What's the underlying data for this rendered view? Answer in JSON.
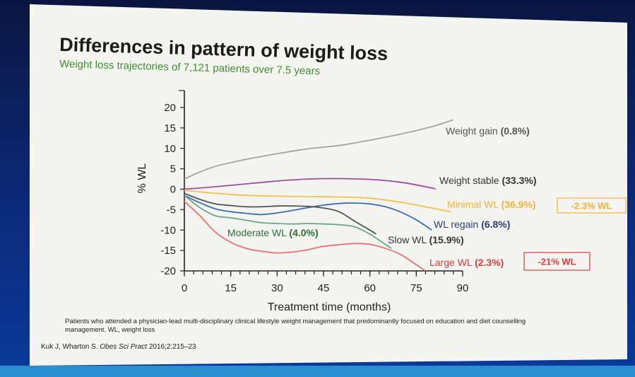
{
  "slide": {
    "title": "Differences in pattern of weight loss",
    "subtitle": "Weight loss trajectories of 7,121 patients over 7.5 years",
    "footnote_line1": "Patients who attended a physician-lead multi-disciplinary clinical lifestyle weight management that predominantly focused on education and diet counselling",
    "footnote_line2": "management. WL, weight loss",
    "citation_authors": "Kuk J, Wharton S. ",
    "citation_journal": "Obes Sci Pract",
    "citation_rest": " 2016;2:215–23"
  },
  "chart_data": {
    "type": "line",
    "title": "",
    "xlabel": "Treatment time (months)",
    "ylabel": "% WL",
    "xlim": [
      0,
      90
    ],
    "ylim": [
      -20,
      20
    ],
    "xticks": [
      0,
      15,
      30,
      45,
      60,
      75,
      90
    ],
    "yticks": [
      20,
      15,
      10,
      5,
      0,
      -5,
      -10,
      -15,
      -20
    ],
    "grid": false,
    "legend": "inline labels at right end of lines",
    "series": [
      {
        "name": "Weight gain",
        "share": "(0.8%)",
        "color": "#a3a3a3",
        "labelColor": "#555555",
        "x": [
          0,
          5,
          10,
          15,
          20,
          30,
          40,
          50,
          60,
          70,
          80,
          87
        ],
        "y": [
          2.5,
          4.2,
          5.6,
          6.5,
          7.3,
          8.7,
          9.9,
          10.7,
          12.0,
          13.5,
          15.3,
          17.0
        ]
      },
      {
        "name": "Weight stable",
        "share": "(33.3%)",
        "color": "#a34ba3",
        "labelColor": "#333333",
        "x": [
          0,
          10,
          20,
          30,
          40,
          50,
          60,
          70,
          80,
          81
        ],
        "y": [
          0,
          0.6,
          1.3,
          2.0,
          2.5,
          2.6,
          2.4,
          1.7,
          0.3,
          0
        ]
      },
      {
        "name": "Minimal WL",
        "share": "(36.9%)",
        "color": "#f2c14e",
        "labelColor": "#f2b13a",
        "x": [
          0,
          10,
          20,
          30,
          40,
          50,
          60,
          70,
          80,
          86
        ],
        "y": [
          -0.3,
          -1.0,
          -1.5,
          -1.7,
          -1.8,
          -1.9,
          -2.2,
          -3.2,
          -4.6,
          -5.5
        ]
      },
      {
        "name": "WL regain",
        "share": "(6.8%)",
        "color": "#3b6fb3",
        "labelColor": "#2c3f73",
        "x": [
          0,
          5,
          10,
          15,
          20,
          25,
          30,
          35,
          40,
          45,
          50,
          55,
          60,
          65,
          70,
          75,
          80
        ],
        "y": [
          -1.5,
          -3.3,
          -4.8,
          -5.5,
          -5.9,
          -6.2,
          -5.8,
          -5.2,
          -4.5,
          -3.9,
          -3.5,
          -3.4,
          -3.6,
          -4.3,
          -5.6,
          -7.5,
          -10.0
        ]
      },
      {
        "name": "Slow WL",
        "share": "(15.9%)",
        "color": "#555555",
        "labelColor": "#333333",
        "x": [
          0,
          5,
          10,
          15,
          20,
          25,
          30,
          35,
          40,
          45,
          50,
          55,
          60,
          62
        ],
        "y": [
          -1.0,
          -2.5,
          -3.6,
          -4.0,
          -4.3,
          -4.3,
          -4.1,
          -4.1,
          -4.2,
          -4.6,
          -5.5,
          -7.8,
          -10.0,
          -11.0
        ]
      },
      {
        "name": "Moderate WL",
        "share": "(4.0%)",
        "color": "#6aa884",
        "labelColor": "#2e6e3a",
        "x": [
          0,
          5,
          10,
          15,
          20,
          25,
          30,
          35,
          40,
          45,
          50,
          55,
          60,
          65,
          67
        ],
        "y": [
          -1.5,
          -4.5,
          -6.5,
          -7.0,
          -7.6,
          -8.2,
          -8.4,
          -8.5,
          -8.4,
          -8.5,
          -8.7,
          -9.2,
          -11.0,
          -13.5,
          -14.5
        ]
      },
      {
        "name": "Large WL",
        "share": "(2.3%)",
        "color": "#f07070",
        "labelColor": "#e03a3a",
        "x": [
          0,
          5,
          10,
          15,
          20,
          25,
          30,
          35,
          40,
          45,
          50,
          55,
          60,
          65,
          70,
          75,
          78
        ],
        "y": [
          -3.0,
          -6.5,
          -10.5,
          -13.0,
          -14.5,
          -15.2,
          -15.6,
          -15.4,
          -14.8,
          -14.0,
          -13.6,
          -13.3,
          -13.5,
          -14.5,
          -16.0,
          -18.5,
          -20.0
        ]
      }
    ],
    "callouts": [
      {
        "text": "-2.3% WL",
        "color": "#f2b13a",
        "series": "Minimal WL"
      },
      {
        "text": "-21% WL",
        "color": "#e03a3a",
        "series": "Large WL"
      }
    ]
  }
}
